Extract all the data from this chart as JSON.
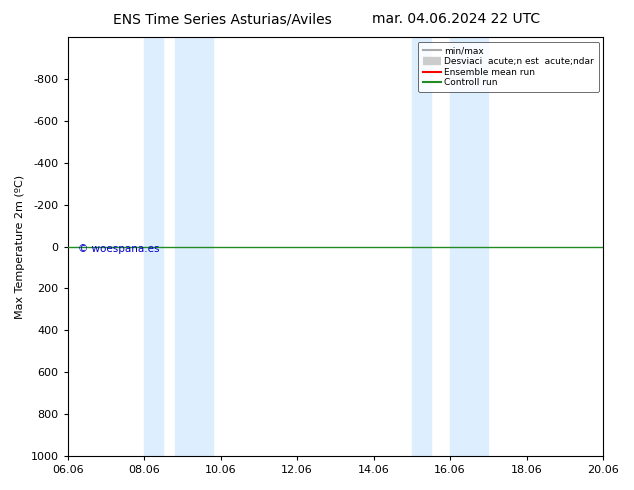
{
  "title_left": "ENS Time Series Asturias/Aviles",
  "title_right": "mar. 04.06.2024 22 UTC",
  "ylabel": "Max Temperature 2m (ºC)",
  "ylim_top": -1000,
  "ylim_bottom": 1000,
  "yticks": [
    -800,
    -600,
    -400,
    -200,
    0,
    200,
    400,
    600,
    800,
    1000
  ],
  "xtick_labels": [
    "06.06",
    "08.06",
    "10.06",
    "12.06",
    "14.06",
    "16.06",
    "18.06",
    "20.06"
  ],
  "xtick_positions": [
    0,
    2,
    4,
    6,
    8,
    10,
    12,
    14
  ],
  "xlim": [
    0,
    14
  ],
  "shaded_regions": [
    [
      2.0,
      2.5
    ],
    [
      2.8,
      4.0
    ],
    [
      9.0,
      9.5
    ],
    [
      10.0,
      11.0
    ]
  ],
  "shaded_color": "#ddeeff",
  "green_line_y": 0,
  "green_line_color": "#228B22",
  "copyright_text": "© woespana.es",
  "copyright_color": "#0000cc",
  "legend_labels": [
    "min/max",
    "Desviaci  acute;n est  acute;ndar",
    "Ensemble mean run",
    "Controll run"
  ],
  "legend_line_colors": [
    "#aaaaaa",
    "#cccccc",
    "#ff0000",
    "#228B22"
  ],
  "background_color": "#ffffff",
  "title_fontsize": 10,
  "axis_fontsize": 8,
  "tick_fontsize": 8
}
